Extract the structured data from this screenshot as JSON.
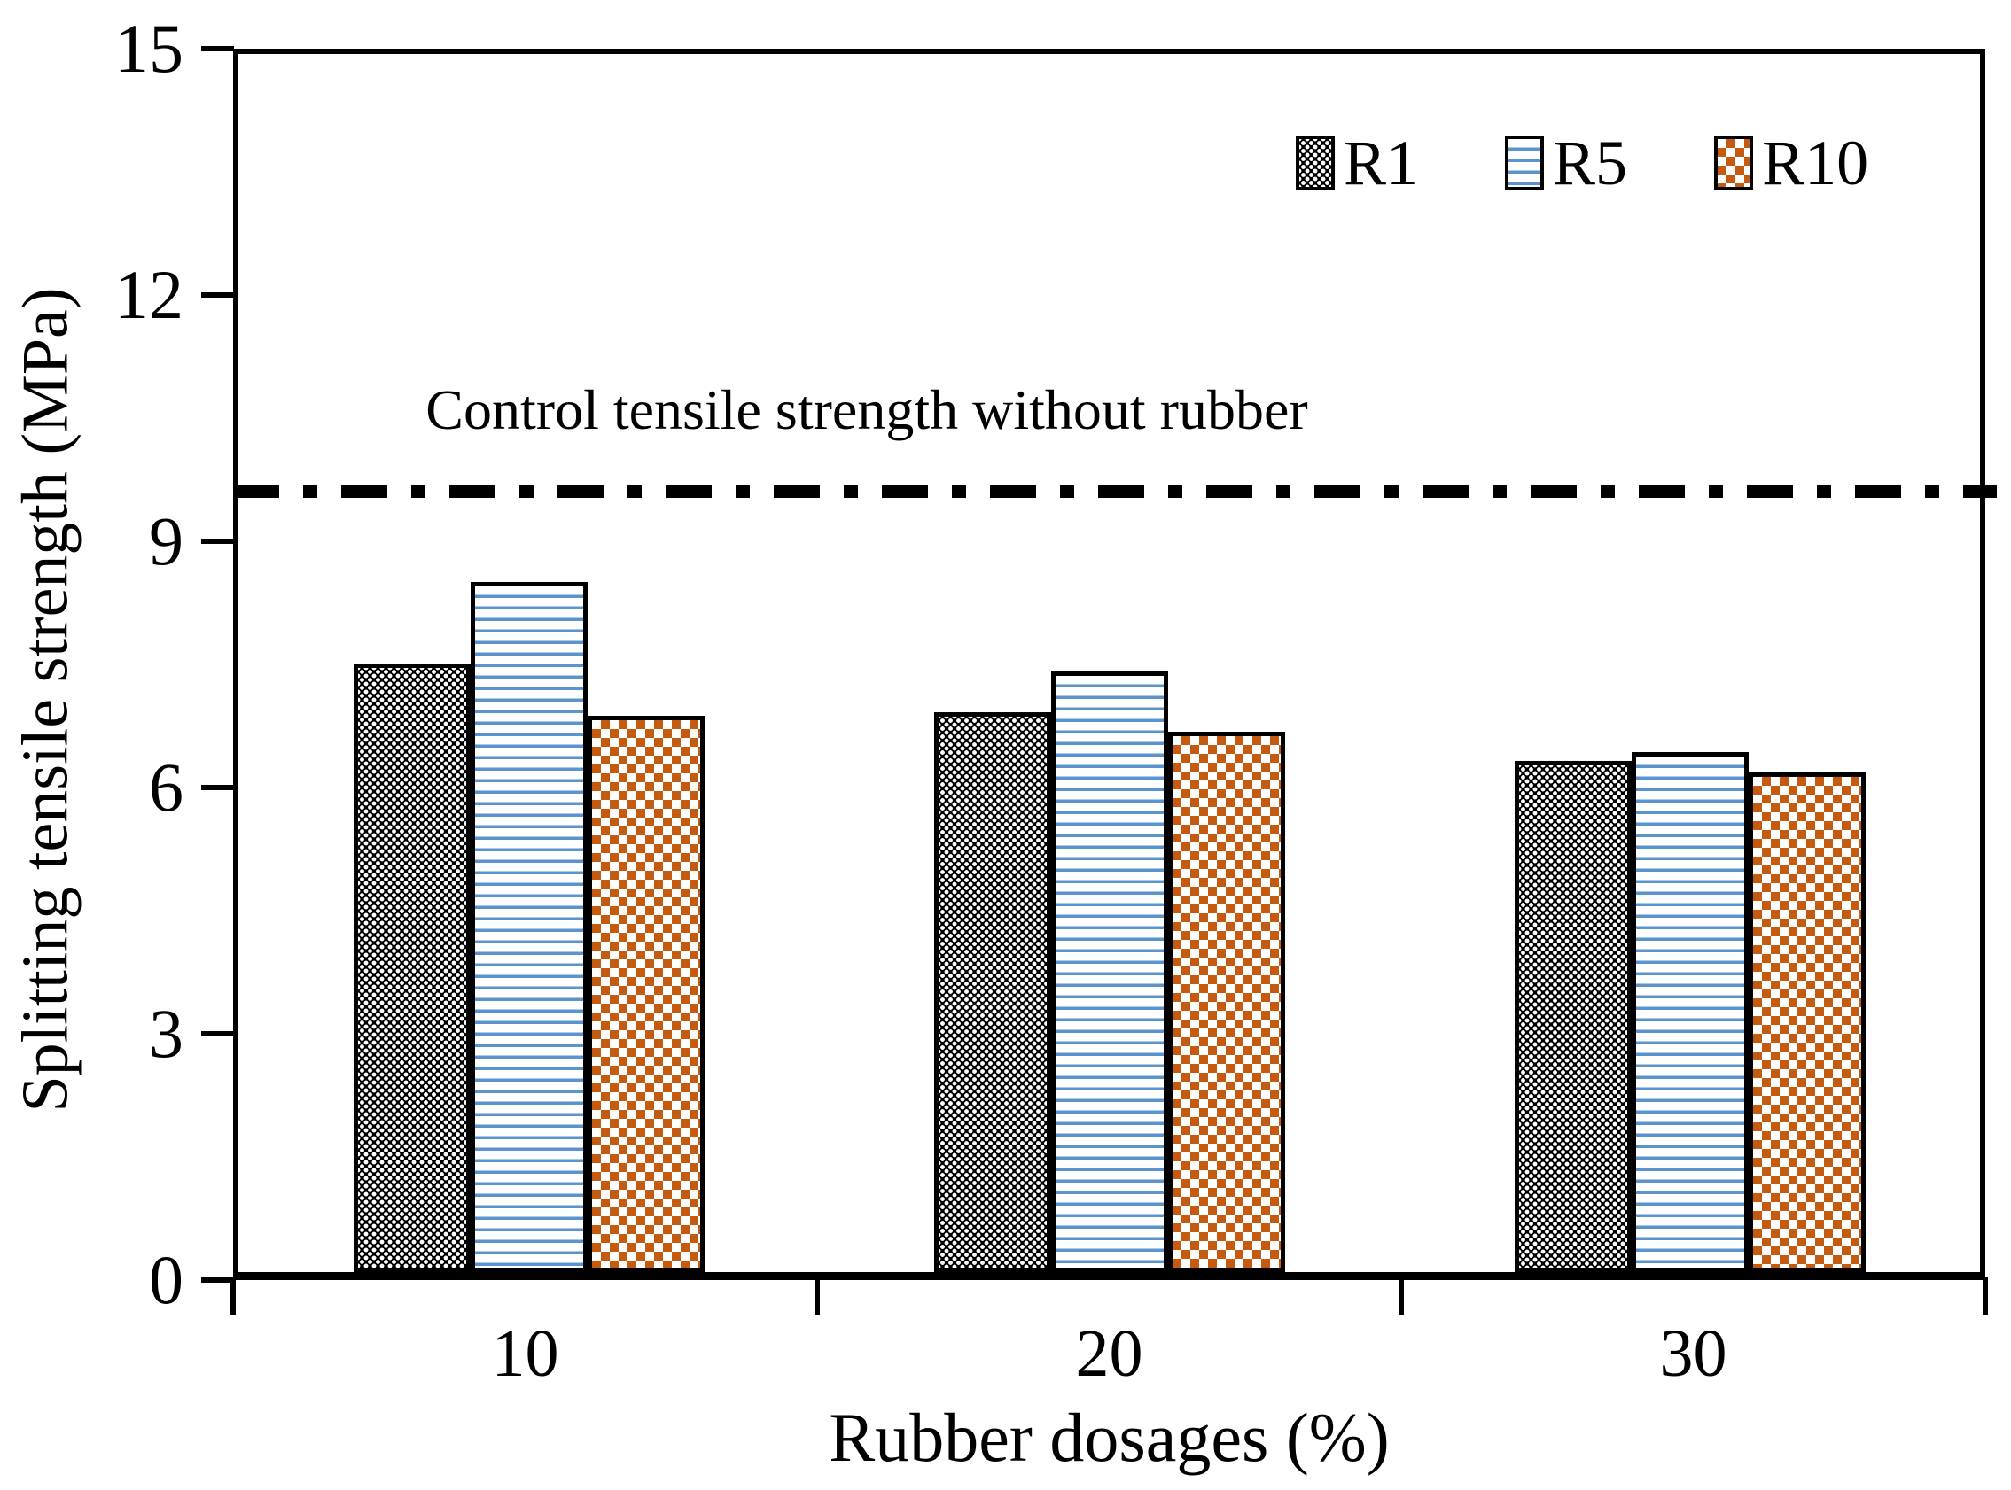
{
  "chart_data": {
    "type": "bar",
    "categories": [
      "10",
      "20",
      "30"
    ],
    "series": [
      {
        "name": "R1",
        "values": [
          7.5,
          6.9,
          6.3
        ],
        "pattern": "dense-black-weave",
        "color": "#000000"
      },
      {
        "name": "R5",
        "values": [
          8.5,
          7.4,
          6.4
        ],
        "pattern": "blue-horizontal-stripes",
        "color": "#5B93CE"
      },
      {
        "name": "R10",
        "values": [
          6.85,
          6.65,
          6.15
        ],
        "pattern": "orange-checkerboard",
        "color": "#C55A11"
      }
    ],
    "xlabel": "Rubber dosages (%)",
    "ylabel": "Splitting tensile strength (MPa)",
    "ylim": [
      0,
      15
    ],
    "yticks": [
      0,
      3,
      6,
      9,
      12,
      15
    ],
    "grid": false,
    "legend_position": "top-right-inside",
    "reference_line": {
      "value": 9.6,
      "style": "dash-dot",
      "color": "#000000",
      "label": "Control tensile strength without rubber"
    }
  }
}
